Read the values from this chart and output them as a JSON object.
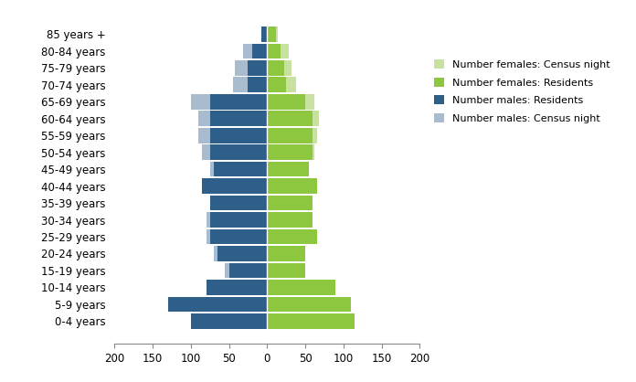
{
  "age_groups": [
    "0-4 years",
    "5-9 years",
    "10-14 years",
    "15-19 years",
    "20-24 years",
    "25-29 years",
    "30-34 years",
    "35-39 years",
    "40-44 years",
    "45-49 years",
    "50-54 years",
    "55-59 years",
    "60-64 years",
    "65-69 years",
    "70-74 years",
    "75-79 years",
    "80-84 years",
    "85 years +"
  ],
  "males_residents": [
    100,
    130,
    80,
    50,
    65,
    75,
    75,
    75,
    85,
    70,
    75,
    75,
    75,
    75,
    25,
    25,
    20,
    8
  ],
  "males_census_night": [
    100,
    130,
    80,
    55,
    70,
    80,
    80,
    75,
    85,
    75,
    85,
    90,
    90,
    100,
    45,
    42,
    32,
    8
  ],
  "females_residents": [
    115,
    110,
    90,
    50,
    50,
    65,
    60,
    60,
    65,
    55,
    60,
    60,
    60,
    50,
    25,
    22,
    18,
    12
  ],
  "females_census_night": [
    115,
    110,
    90,
    50,
    50,
    65,
    60,
    60,
    65,
    55,
    62,
    65,
    68,
    62,
    38,
    32,
    28,
    14
  ],
  "color_males_residents": "#2E5F8A",
  "color_males_census_night": "#A8BBCF",
  "color_females_residents": "#8DC63F",
  "color_females_census_night": "#C8E0A0",
  "xlim": 200,
  "legend_labels": [
    "Number females: Census night",
    "Number females: Residents",
    "Number males: Residents",
    "Number males: Census night"
  ]
}
